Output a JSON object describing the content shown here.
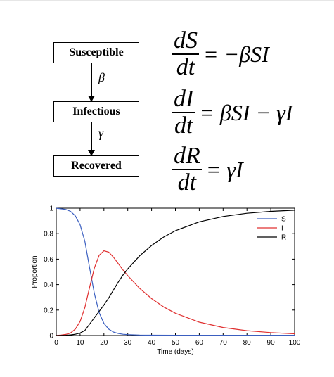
{
  "diagram": {
    "compartments": [
      "Susceptible",
      "Infectious",
      "Recovered"
    ],
    "rates": [
      "β",
      "γ"
    ],
    "equations": [
      {
        "num": "dS",
        "den": "dt",
        "rhs": "= −βSI"
      },
      {
        "num": "dI",
        "den": "dt",
        "rhs": "= βSI − γI"
      },
      {
        "num": "dR",
        "den": "dt",
        "rhs": "= γI"
      }
    ]
  },
  "chart_data": {
    "type": "line",
    "title": "",
    "xlabel": "Time (days)",
    "ylabel": "Proportion",
    "xlim": [
      0,
      100
    ],
    "ylim": [
      0,
      1
    ],
    "xticks": [
      0,
      10,
      20,
      30,
      40,
      50,
      60,
      70,
      80,
      90,
      100
    ],
    "yticks": [
      0,
      0.2,
      0.4,
      0.6,
      0.8,
      1
    ],
    "grid": false,
    "legend": "top-right",
    "series": [
      {
        "name": "S",
        "color": "#3b5fc0",
        "x": [
          0,
          2,
          4,
          6,
          8,
          10,
          12,
          14,
          16,
          18,
          20,
          22,
          24,
          26,
          28,
          30,
          35,
          40,
          50,
          60,
          70,
          80,
          90,
          100
        ],
        "y": [
          0.999,
          0.995,
          0.99,
          0.975,
          0.94,
          0.87,
          0.74,
          0.53,
          0.33,
          0.18,
          0.095,
          0.05,
          0.027,
          0.016,
          0.01,
          0.007,
          0.004,
          0.003,
          0.002,
          0.002,
          0.002,
          0.002,
          0.002,
          0.002
        ]
      },
      {
        "name": "I",
        "color": "#e03030",
        "x": [
          0,
          2,
          4,
          6,
          8,
          10,
          12,
          14,
          16,
          18,
          20,
          22,
          24,
          26,
          28,
          30,
          35,
          40,
          45,
          50,
          60,
          70,
          80,
          90,
          100
        ],
        "y": [
          0.001,
          0.004,
          0.009,
          0.02,
          0.05,
          0.11,
          0.22,
          0.38,
          0.53,
          0.63,
          0.665,
          0.655,
          0.615,
          0.565,
          0.515,
          0.47,
          0.37,
          0.29,
          0.225,
          0.175,
          0.105,
          0.063,
          0.038,
          0.023,
          0.014
        ]
      },
      {
        "name": "R",
        "color": "#000000",
        "x": [
          0,
          2,
          4,
          6,
          8,
          10,
          12,
          14,
          16,
          18,
          20,
          22,
          24,
          26,
          28,
          30,
          35,
          40,
          45,
          50,
          60,
          70,
          80,
          90,
          100
        ],
        "y": [
          0,
          0.001,
          0.002,
          0.005,
          0.01,
          0.02,
          0.04,
          0.09,
          0.14,
          0.19,
          0.24,
          0.295,
          0.358,
          0.419,
          0.475,
          0.523,
          0.626,
          0.707,
          0.773,
          0.823,
          0.893,
          0.935,
          0.96,
          0.975,
          0.984
        ]
      }
    ]
  }
}
